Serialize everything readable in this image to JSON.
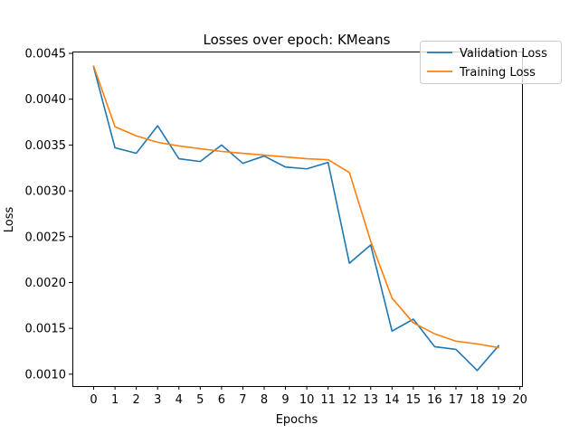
{
  "chart_data": {
    "type": "line",
    "title": "Losses over epoch: KMeans",
    "xlabel": "Epochs",
    "ylabel": "Loss",
    "xlim": [
      -1,
      20.1
    ],
    "ylim": [
      0.00087,
      0.00452
    ],
    "xticks": [
      0,
      1,
      2,
      3,
      4,
      5,
      6,
      7,
      8,
      9,
      10,
      11,
      12,
      13,
      14,
      15,
      16,
      17,
      18,
      19,
      20
    ],
    "yticks": [
      0.001,
      0.0015,
      0.002,
      0.0025,
      0.003,
      0.0035,
      0.004,
      0.0045
    ],
    "ytick_labels": [
      "0.0010",
      "0.0015",
      "0.0020",
      "0.0025",
      "0.0030",
      "0.0035",
      "0.0040",
      "0.0045"
    ],
    "grid": false,
    "legend_position": "top-right",
    "x": [
      0,
      1,
      2,
      3,
      4,
      5,
      6,
      7,
      8,
      9,
      10,
      11,
      12,
      13,
      14,
      15,
      16,
      17,
      18,
      19
    ],
    "series": [
      {
        "name": "Validation Loss",
        "color": "#1f77b4",
        "values": [
          0.00435,
          0.00347,
          0.00341,
          0.00371,
          0.00335,
          0.00332,
          0.0035,
          0.0033,
          0.00338,
          0.00326,
          0.00324,
          0.00331,
          0.00221,
          0.00241,
          0.00147,
          0.0016,
          0.0013,
          0.00127,
          0.00104,
          0.00131
        ]
      },
      {
        "name": "Training Loss",
        "color": "#ff7f0e",
        "values": [
          0.00436,
          0.0037,
          0.0036,
          0.00353,
          0.00349,
          0.00346,
          0.00343,
          0.00341,
          0.00339,
          0.00337,
          0.00335,
          0.00334,
          0.0032,
          0.00245,
          0.00183,
          0.00156,
          0.00144,
          0.00136,
          0.00133,
          0.00129
        ]
      }
    ]
  }
}
